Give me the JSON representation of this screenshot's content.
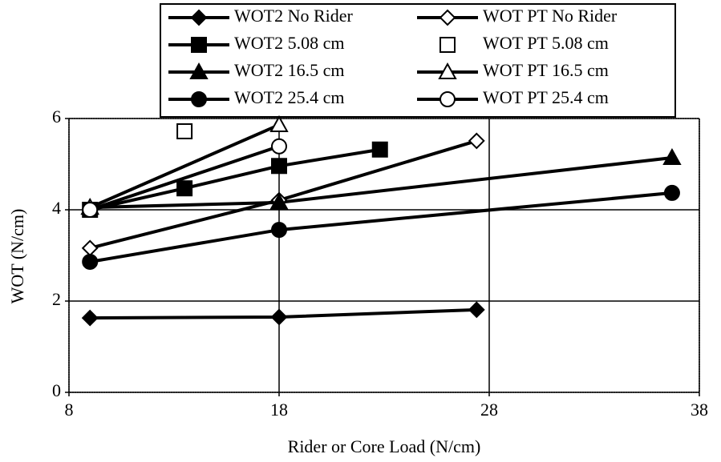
{
  "chart_data": {
    "type": "line",
    "x_label": "Rider or Core Load (N/cm)",
    "y_label": "WOT (N/cm)",
    "xlim": [
      8,
      38
    ],
    "xticks": [
      8,
      18,
      28,
      38
    ],
    "ylim": [
      0,
      6
    ],
    "yticks": [
      0,
      2,
      4,
      6
    ],
    "grid": true,
    "series": [
      {
        "name": "WOT2 No Rider",
        "color": "#000000",
        "marker": "diamond",
        "filled": true,
        "x": [
          9,
          18,
          27.4
        ],
        "values": [
          1.63,
          1.65,
          1.81
        ]
      },
      {
        "name": "WOT PT No Rider",
        "color": "#000000",
        "marker": "diamond",
        "filled": false,
        "x": [
          9,
          18,
          27.4
        ],
        "values": [
          3.16,
          4.21,
          5.51
        ]
      },
      {
        "name": "WOT2 5.08 cm",
        "color": "#000000",
        "marker": "square",
        "filled": true,
        "x": [
          9,
          13.5,
          18,
          22.8
        ],
        "values": [
          4.0,
          4.47,
          4.96,
          5.32
        ]
      },
      {
        "name": "WOT PT 5.08 cm",
        "color": "#000000",
        "marker": "square",
        "filled": false,
        "x": [
          13.5
        ],
        "values": [
          5.72
        ]
      },
      {
        "name": "WOT2 16.5 cm",
        "color": "#000000",
        "marker": "triangle",
        "filled": true,
        "x": [
          9,
          18,
          36.7
        ],
        "values": [
          4.05,
          4.16,
          5.14
        ]
      },
      {
        "name": "WOT PT 16.5 cm",
        "color": "#000000",
        "marker": "triangle",
        "filled": false,
        "x": [
          9,
          18
        ],
        "values": [
          4.05,
          5.86
        ]
      },
      {
        "name": "WOT2 25.4 cm",
        "color": "#000000",
        "marker": "circle",
        "filled": true,
        "x": [
          9,
          18,
          36.7
        ],
        "values": [
          2.86,
          3.56,
          4.37
        ]
      },
      {
        "name": "WOT PT 25.4 cm",
        "color": "#000000",
        "marker": "circle",
        "filled": false,
        "x": [
          9,
          18
        ],
        "values": [
          4.0,
          5.39
        ]
      }
    ]
  }
}
